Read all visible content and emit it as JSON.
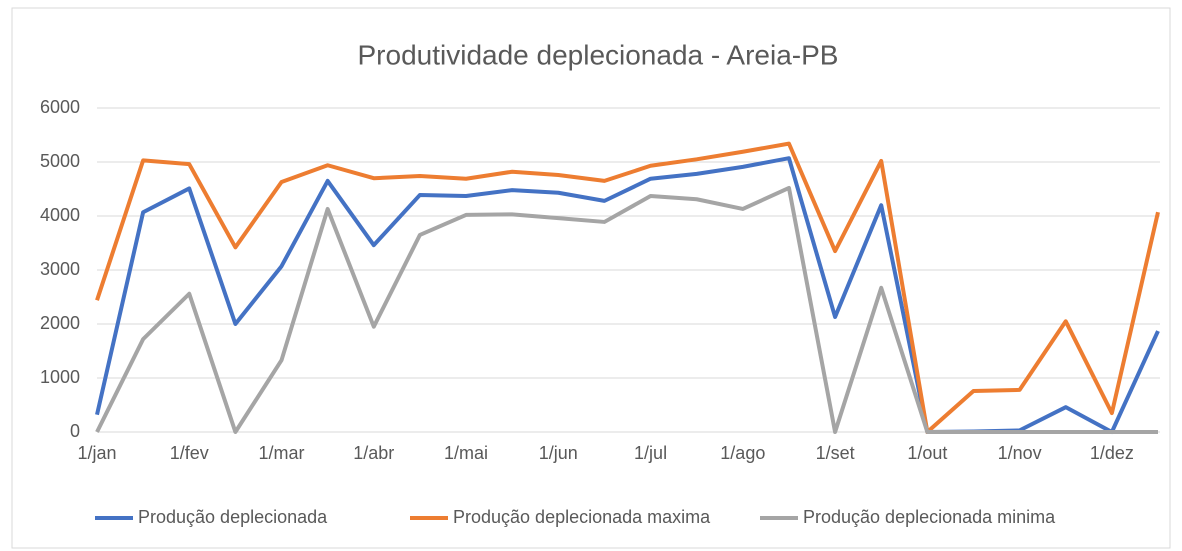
{
  "chart_data": {
    "type": "line",
    "title": "Produtividade deplecionada - Areia-PB",
    "categories": [
      "1/jan",
      null,
      "1/fev",
      null,
      "1/mar",
      null,
      "1/abr",
      null,
      "1/mai",
      null,
      "1/jun",
      null,
      "1/jul",
      null,
      "1/ago",
      null,
      "1/set",
      null,
      "1/out",
      null,
      "1/nov",
      null,
      "1/dez",
      null
    ],
    "series": [
      {
        "name": "Produção deplecionada",
        "color": "#4472c4",
        "values": [
          320,
          4070,
          4510,
          2000,
          3070,
          4650,
          3460,
          4390,
          4370,
          4480,
          4430,
          4280,
          4690,
          4780,
          4910,
          5070,
          2130,
          4200,
          0,
          10,
          30,
          460,
          0,
          1870
        ]
      },
      {
        "name": "Produção deplecionada maxima",
        "color": "#ed7d31",
        "values": [
          2440,
          5030,
          4960,
          3420,
          4630,
          4940,
          4700,
          4740,
          4690,
          4820,
          4760,
          4650,
          4930,
          5050,
          5190,
          5340,
          3350,
          5020,
          0,
          760,
          780,
          2050,
          350,
          4070
        ]
      },
      {
        "name": "Produção deplecionada minima",
        "color": "#a5a5a5",
        "values": [
          0,
          1720,
          2560,
          0,
          1330,
          4130,
          1950,
          3650,
          4020,
          4030,
          3960,
          3890,
          4370,
          4310,
          4130,
          4520,
          0,
          2670,
          0,
          0,
          0,
          0,
          0,
          0
        ]
      }
    ],
    "ylim": [
      0,
      6000
    ],
    "yticks": [
      0,
      1000,
      2000,
      3000,
      4000,
      5000,
      6000
    ],
    "grid": true,
    "legend": "bottom"
  }
}
